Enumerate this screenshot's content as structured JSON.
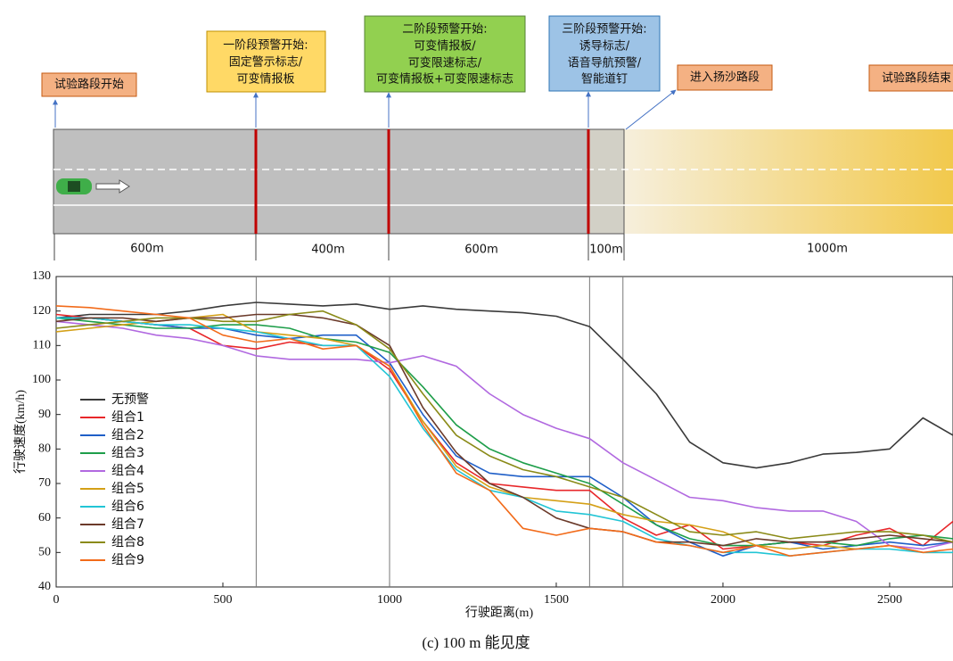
{
  "diagram": {
    "boxes": [
      {
        "lines": [
          "试验路段开始"
        ]
      },
      {
        "lines": [
          "一阶段预警开始:",
          "固定警示标志/",
          "可变情报板"
        ]
      },
      {
        "lines": [
          "二阶段预警开始:",
          "可变情报板/",
          "可变限速标志/",
          "可变情报板+可变限速标志"
        ]
      },
      {
        "lines": [
          "三阶段预警开始:",
          "诱导标志/",
          "语音导航预警/",
          "智能道钉"
        ]
      },
      {
        "lines": [
          "进入扬沙路段"
        ]
      },
      {
        "lines": [
          "试验路段结束"
        ]
      }
    ],
    "segments": [
      "600m",
      "400m",
      "600m",
      "100m",
      "1000m"
    ]
  },
  "chart_data": {
    "type": "line",
    "x_label": "行驶距离(m)",
    "y_label": "行驶速度(km/h)",
    "caption": "(c) 100 m 能见度",
    "xlim": [
      0,
      2690
    ],
    "ylim": [
      40,
      130
    ],
    "xticks": [
      0,
      500,
      1000,
      1500,
      2000,
      2500
    ],
    "yticks": [
      40,
      50,
      60,
      70,
      80,
      90,
      100,
      110,
      120,
      130
    ],
    "vlines": [
      600,
      1000,
      1600,
      1700
    ],
    "x": [
      0,
      100,
      200,
      300,
      400,
      500,
      600,
      700,
      800,
      900,
      1000,
      1100,
      1200,
      1300,
      1400,
      1500,
      1600,
      1700,
      1800,
      1900,
      2000,
      2100,
      2200,
      2300,
      2400,
      2500,
      2600,
      2690
    ],
    "series": [
      {
        "name": "无预警",
        "color": "#3a3a3a",
        "values": [
          118,
          119,
          119,
          119,
          120,
          121.5,
          122.5,
          122,
          121.5,
          122,
          120.5,
          121.5,
          120.5,
          120,
          119.5,
          118.5,
          115.5,
          106,
          96,
          82,
          76,
          74.5,
          76,
          78.5,
          79,
          80,
          89,
          84
        ]
      },
      {
        "name": "组合1",
        "color": "#e8272a",
        "values": [
          119,
          118,
          117,
          116,
          115,
          110,
          109,
          111,
          110,
          110,
          103,
          88,
          76,
          70,
          69,
          68,
          68,
          60,
          55,
          58,
          51,
          52,
          53,
          52,
          55,
          57,
          52,
          59
        ]
      },
      {
        "name": "组合2",
        "color": "#1f5fc8",
        "values": [
          118,
          118,
          117,
          116,
          115,
          115,
          113,
          112,
          113,
          113,
          105,
          90,
          78,
          73,
          72,
          72,
          72,
          66,
          58,
          53,
          49,
          52,
          53,
          51,
          52,
          53,
          52,
          53
        ]
      },
      {
        "name": "组合3",
        "color": "#1e9e4a",
        "values": [
          118,
          117,
          116,
          115,
          115,
          116,
          116,
          115,
          112,
          111,
          108,
          98,
          87,
          80,
          76,
          73,
          70,
          64,
          58,
          54,
          52,
          52,
          53,
          53,
          52,
          54,
          55,
          54
        ]
      },
      {
        "name": "组合4",
        "color": "#b169e0",
        "values": [
          117,
          116,
          115,
          113,
          112,
          110,
          107,
          106,
          106,
          106,
          105,
          107,
          104,
          96,
          90,
          86,
          83,
          76,
          71,
          66,
          65,
          63,
          62,
          62,
          59,
          52,
          51,
          53
        ]
      },
      {
        "name": "组合5",
        "color": "#d4a017",
        "values": [
          114,
          115,
          116,
          117,
          118,
          119,
          114,
          113,
          112,
          110,
          104,
          88,
          75,
          69,
          66,
          65,
          64,
          61,
          59,
          58,
          56,
          52,
          51,
          52,
          51,
          52,
          50,
          50
        ]
      },
      {
        "name": "组合6",
        "color": "#22c5d5",
        "values": [
          118,
          118,
          117,
          116,
          116,
          115,
          114,
          112,
          110,
          110,
          101,
          86,
          74,
          68,
          66,
          62,
          61,
          59,
          54,
          52,
          50,
          50,
          49,
          50,
          51,
          51,
          50,
          50
        ]
      },
      {
        "name": "组合7",
        "color": "#6b3a2a",
        "values": [
          117,
          118,
          118,
          117,
          118,
          118,
          119,
          119,
          118,
          116,
          110,
          92,
          79,
          70,
          66,
          60,
          57,
          56,
          53,
          53,
          52,
          54,
          53,
          53,
          54,
          55,
          54,
          53
        ]
      },
      {
        "name": "组合8",
        "color": "#8a8a17",
        "values": [
          115,
          116,
          117,
          118,
          118,
          117,
          117,
          119,
          120,
          116,
          109,
          96,
          84,
          78,
          74,
          72,
          69,
          66,
          61,
          56,
          55,
          56,
          54,
          55,
          56,
          56,
          55,
          53
        ]
      },
      {
        "name": "组合9",
        "color": "#f26b1a",
        "values": [
          121.5,
          121,
          120,
          119,
          118,
          113,
          111,
          112,
          109,
          110,
          104,
          87,
          73,
          68,
          57,
          55,
          57,
          56,
          53,
          52,
          50,
          52,
          49,
          50,
          51,
          52,
          50,
          51
        ]
      }
    ]
  }
}
